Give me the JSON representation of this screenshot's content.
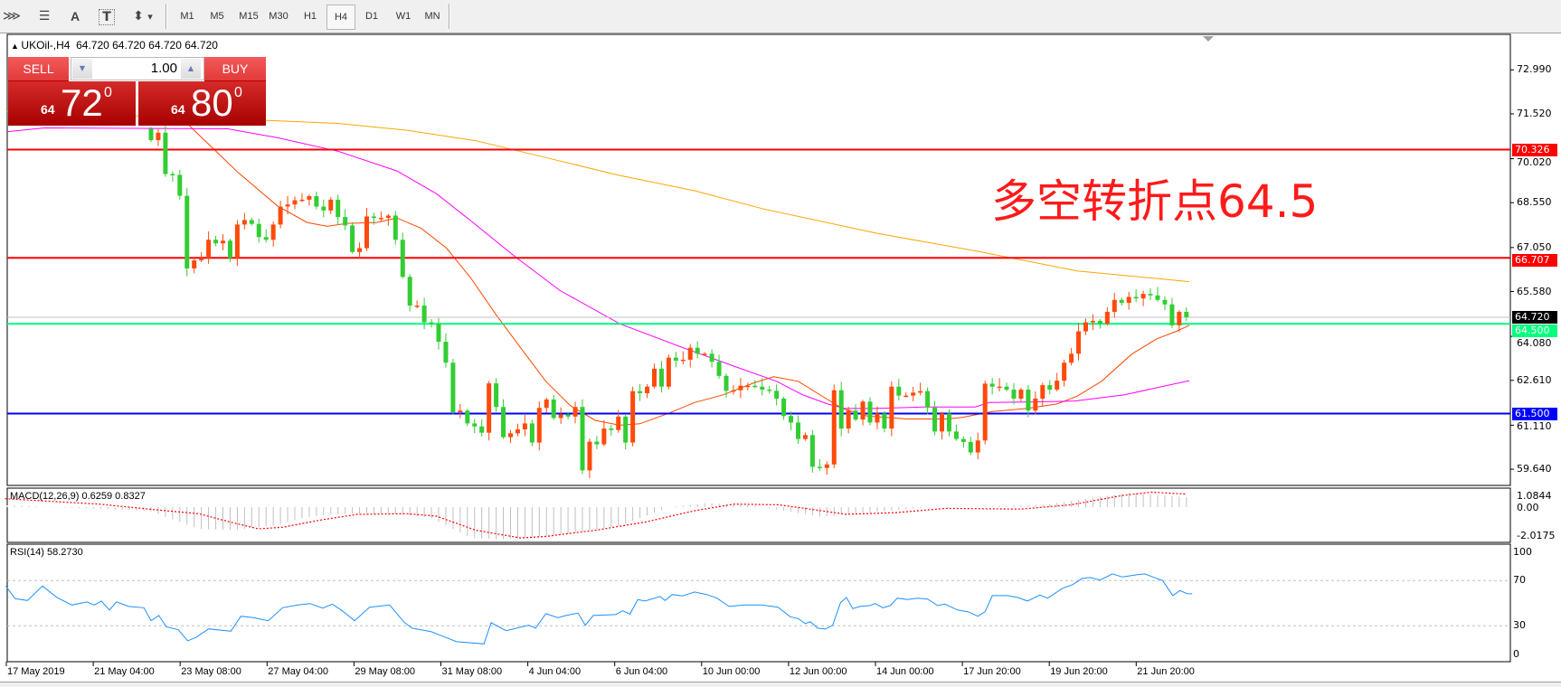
{
  "toolbar": {
    "tools": [
      {
        "icon": "elliott-wave-icon",
        "glyph": "⋙"
      },
      {
        "icon": "fibonacci-icon",
        "glyph": "☰"
      },
      {
        "icon": "text-icon",
        "glyph": "A"
      },
      {
        "icon": "text-label-icon",
        "glyph": "T"
      },
      {
        "icon": "arrows-icon",
        "glyph": "⬍"
      }
    ],
    "dropdown_glyph": "▾",
    "timeframes": [
      "M1",
      "M5",
      "M15",
      "M30",
      "H1",
      "H4",
      "D1",
      "W1",
      "MN"
    ],
    "active_timeframe": "H4"
  },
  "chart": {
    "symbol_line": "UKOil-,H4  64.720 64.720 64.720 64.720",
    "annotation": "多空转折点64.5"
  },
  "trade": {
    "sell_label": "SELL",
    "buy_label": "BUY",
    "lot": "1.00",
    "sell_price": {
      "small": "64",
      "big": "72",
      "sup": "0"
    },
    "buy_price": {
      "small": "64",
      "big": "80",
      "sup": "0"
    }
  },
  "price_axis": {
    "ticks": [
      {
        "value": 72.99,
        "label": "72.990"
      },
      {
        "value": 71.52,
        "label": "71.520"
      },
      {
        "value": 70.02,
        "label": "70.020"
      },
      {
        "value": 68.55,
        "label": "68.550"
      },
      {
        "value": 67.05,
        "label": "67.050"
      },
      {
        "value": 65.58,
        "label": "65.580"
      },
      {
        "value": 64.08,
        "label": "64.080"
      },
      {
        "value": 62.61,
        "label": "62.610"
      },
      {
        "value": 61.11,
        "label": "61.110"
      },
      {
        "value": 59.64,
        "label": "59.640"
      }
    ],
    "levels": [
      {
        "value": 70.326,
        "label": "70.326",
        "color": "#ff0000"
      },
      {
        "value": 66.707,
        "label": "66.707",
        "color": "#ff0000"
      },
      {
        "value": 64.5,
        "label": "64.500",
        "color": "#00ff7f"
      },
      {
        "value": 61.5,
        "label": "61.500",
        "color": "#0000ff"
      }
    ],
    "bid": {
      "value": 64.72,
      "label": "64.720",
      "color": "#000000"
    }
  },
  "macd": {
    "label": "MACD(12,26,9) 0.6259 0.8327",
    "axis": [
      {
        "value": 1.0844,
        "label": "1.0844"
      },
      {
        "value": 0,
        "label": "0.00"
      },
      {
        "value": -2.0175,
        "label": "-2.0175"
      }
    ],
    "histogram": [
      [
        -20.3,
        0.12
      ],
      [
        -0.3,
        -0.23
      ],
      [
        6.6,
        -1.39
      ],
      [
        11.4,
        -1.48
      ],
      [
        16.9,
        -1.19
      ],
      [
        21.8,
        -0.62
      ],
      [
        27.3,
        -0.42
      ],
      [
        34.2,
        -0.42
      ],
      [
        39,
        -0.71
      ],
      [
        44.5,
        -1.97
      ],
      [
        48,
        -2.06
      ],
      [
        52.1,
        -2.0
      ],
      [
        58.3,
        -1.68
      ],
      [
        65.2,
        -1.19
      ],
      [
        72.1,
        0
      ],
      [
        77,
        0.25
      ],
      [
        82.5,
        0.19
      ],
      [
        87.6,
        -0.19
      ],
      [
        93.2,
        -0.62
      ],
      [
        100.2,
        -0.33
      ],
      [
        107.1,
        -0.04
      ],
      [
        117.5,
        0.06
      ],
      [
        124.5,
        0.15
      ],
      [
        131.4,
        0.64
      ],
      [
        136.3,
        0.92
      ],
      [
        144,
        0.63
      ]
    ],
    "signal": [
      [
        -20.3,
        0.54
      ],
      [
        -7.2,
        0.19
      ],
      [
        -0.3,
        -0.13
      ],
      [
        6.6,
        -0.42
      ],
      [
        11.4,
        -1.0
      ],
      [
        14.9,
        -1.39
      ],
      [
        18.3,
        -1.29
      ],
      [
        23.8,
        -0.81
      ],
      [
        28.7,
        -0.46
      ],
      [
        35.6,
        -0.42
      ],
      [
        39.7,
        -0.58
      ],
      [
        45.2,
        -1.48
      ],
      [
        51.4,
        -1.97
      ],
      [
        54.9,
        -1.87
      ],
      [
        61.8,
        -1.48
      ],
      [
        68.7,
        -0.96
      ],
      [
        75.6,
        -0.23
      ],
      [
        81.1,
        0.19
      ],
      [
        87.2,
        0.15
      ],
      [
        89.7,
        0
      ],
      [
        96.7,
        -0.46
      ],
      [
        103.6,
        -0.35
      ],
      [
        110.6,
        -0.08
      ],
      [
        121,
        -0.13
      ],
      [
        128,
        0.15
      ],
      [
        134.9,
        0.73
      ],
      [
        139.1,
        0.96
      ],
      [
        144,
        0.83
      ]
    ],
    "histogram_color": "#c0c0c0",
    "signal_color": "#ff0000"
  },
  "rsi": {
    "label": "RSI(14) 58.2730",
    "axis": [
      {
        "value": 100,
        "label": "100"
      },
      {
        "value": 70,
        "label": "70"
      },
      {
        "value": 30,
        "label": "30"
      },
      {
        "value": 0,
        "label": "0"
      }
    ],
    "levels": [
      70,
      30
    ],
    "color": "#1e90ff",
    "points": [
      [
        -20.2,
        65.2
      ],
      [
        -18.9,
        54
      ],
      [
        -17.2,
        52.4
      ],
      [
        -15.1,
        65.2
      ],
      [
        -13.1,
        55.1
      ],
      [
        -11,
        48.4
      ],
      [
        -8.9,
        51.1
      ],
      [
        -7.9,
        48.4
      ],
      [
        -6.9,
        51.9
      ],
      [
        -5.8,
        43.9
      ],
      [
        -4.8,
        51.1
      ],
      [
        -3.1,
        47.1
      ],
      [
        -1,
        46
      ],
      [
        0,
        34.5
      ],
      [
        1.1,
        39.1
      ],
      [
        2.1,
        29.2
      ],
      [
        3.8,
        26.5
      ],
      [
        5.1,
        16.7
      ],
      [
        6.3,
        19.9
      ],
      [
        8,
        27.3
      ],
      [
        11.1,
        25.2
      ],
      [
        12.5,
        38.5
      ],
      [
        14.2,
        37.2
      ],
      [
        16.3,
        34.5
      ],
      [
        18.3,
        46
      ],
      [
        20.4,
        48.4
      ],
      [
        22.1,
        49.7
      ],
      [
        23.9,
        45.7
      ],
      [
        25.2,
        49.2
      ],
      [
        26.6,
        43.3
      ],
      [
        28.3,
        34.5
      ],
      [
        30.4,
        46.5
      ],
      [
        33.2,
        48.4
      ],
      [
        35.2,
        33.2
      ],
      [
        36.3,
        27.9
      ],
      [
        39,
        24.7
      ],
      [
        40.4,
        21.2
      ],
      [
        42.5,
        15.9
      ],
      [
        46.3,
        14
      ],
      [
        47.3,
        32.7
      ],
      [
        49.4,
        25.7
      ],
      [
        52.5,
        30.5
      ],
      [
        53.5,
        27.9
      ],
      [
        54.9,
        40.7
      ],
      [
        56.6,
        37.2
      ],
      [
        57.7,
        39.1
      ],
      [
        59.4,
        41.2
      ],
      [
        60.4,
        30.5
      ],
      [
        61.5,
        39.1
      ],
      [
        64.6,
        39.9
      ],
      [
        65.6,
        43.3
      ],
      [
        66.6,
        40.4
      ],
      [
        67.7,
        53.2
      ],
      [
        68.7,
        51.9
      ],
      [
        70.8,
        55.9
      ],
      [
        71.5,
        52.4
      ],
      [
        72.5,
        57.7
      ],
      [
        73.9,
        56.4
      ],
      [
        75.6,
        59.9
      ],
      [
        77.3,
        57.7
      ],
      [
        78.7,
        54.5
      ],
      [
        80.4,
        47.1
      ],
      [
        82.5,
        48.4
      ],
      [
        84.9,
        48.4
      ],
      [
        87.2,
        46.5
      ],
      [
        88.9,
        38
      ],
      [
        90,
        36.4
      ],
      [
        91,
        31.9
      ],
      [
        91.7,
        33.7
      ],
      [
        92.7,
        27.9
      ],
      [
        93.8,
        27.1
      ],
      [
        94.8,
        30.5
      ],
      [
        95.9,
        50.5
      ],
      [
        96.7,
        55.1
      ],
      [
        97.6,
        45.2
      ],
      [
        98.6,
        47.1
      ],
      [
        100,
        47.9
      ],
      [
        100.7,
        49.7
      ],
      [
        101.8,
        46
      ],
      [
        102.8,
        47.9
      ],
      [
        103.8,
        54.5
      ],
      [
        105.2,
        53.2
      ],
      [
        106.6,
        54.5
      ],
      [
        108,
        53.7
      ],
      [
        109.4,
        47.9
      ],
      [
        110.4,
        49.2
      ],
      [
        112.2,
        43.9
      ],
      [
        113.6,
        42.5
      ],
      [
        115,
        38.5
      ],
      [
        116,
        42.5
      ],
      [
        117,
        56.7
      ],
      [
        119.1,
        56.7
      ],
      [
        120.5,
        55.1
      ],
      [
        121.9,
        51.9
      ],
      [
        123.6,
        57.2
      ],
      [
        124.7,
        54.5
      ],
      [
        126.8,
        63.3
      ],
      [
        128.2,
        66.5
      ],
      [
        129.5,
        71.9
      ],
      [
        130.6,
        72.7
      ],
      [
        132,
        70.5
      ],
      [
        133.7,
        75.9
      ],
      [
        135.1,
        73.2
      ],
      [
        137.2,
        75.3
      ],
      [
        138.2,
        75.9
      ],
      [
        140.7,
        70
      ],
      [
        142.1,
        56.7
      ],
      [
        143.1,
        61.2
      ],
      [
        144.1,
        58.5
      ],
      [
        144.8,
        58.3
      ]
    ]
  },
  "x_axis": {
    "labels": [
      "17 May 2019",
      "21 May 04:00",
      "23 May 08:00",
      "27 May 04:00",
      "29 May 08:00",
      "31 May 08:00",
      "4 Jun 04:00",
      "6 Jun 04:00",
      "10 Jun 00:00",
      "12 Jun 00:00",
      "14 Jun 00:00",
      "17 Jun 20:00",
      "19 Jun 20:00",
      "21 Jun 20:00"
    ]
  },
  "chart_data": {
    "type": "candlestick",
    "symbol": "UKOil-",
    "timeframe": "H4",
    "first_open": 71.02,
    "closes": [
      70.64,
      70.89,
      69.51,
      69.48,
      68.78,
      66.35,
      66.62,
      66.7,
      67.31,
      67.19,
      67.28,
      66.7,
      67.82,
      67.97,
      67.84,
      67.4,
      67.31,
      67.82,
      68.42,
      68.49,
      68.63,
      68.65,
      68.77,
      68.42,
      68.29,
      68.65,
      68.07,
      67.79,
      66.9,
      67.03,
      68.09,
      68.04,
      68.04,
      68.12,
      67.31,
      66.07,
      65.11,
      65.11,
      64.55,
      64.5,
      63.9,
      63.2,
      61.54,
      61.6,
      61.17,
      61.07,
      60.86,
      62.51,
      61.72,
      60.71,
      60.84,
      60.97,
      61.17,
      60.53,
      61.69,
      61.97,
      61.35,
      61.47,
      61.4,
      61.72,
      59.6,
      60.56,
      60.47,
      61.0,
      60.95,
      61.4,
      60.53,
      62.25,
      62.18,
      62.4,
      63.0,
      62.4,
      63.37,
      63.27,
      63.3,
      63.7,
      63.5,
      63.5,
      63.23,
      62.76,
      62.26,
      62.28,
      62.43,
      62.43,
      62.4,
      62.3,
      62.26,
      62.0,
      61.42,
      61.2,
      60.65,
      60.78,
      59.72,
      59.68,
      59.8,
      62.28,
      61.0,
      61.6,
      61.3,
      61.9,
      61.2,
      61.5,
      61.0,
      62.4,
      62.1,
      62.1,
      62.2,
      62.25,
      61.7,
      60.9,
      61.5,
      60.9,
      60.65,
      60.55,
      60.2,
      60.6,
      62.5,
      62.4,
      62.4,
      62.3,
      62.0,
      62.3,
      61.6,
      62.0,
      62.45,
      62.3,
      62.6,
      63.2,
      63.5,
      64.25,
      64.55,
      64.6,
      64.5,
      64.9,
      65.3,
      65.2,
      65.4,
      65.35,
      65.5,
      65.45,
      65.3,
      65.15,
      64.45,
      64.9,
      64.72
    ],
    "up_color": "#ff4a0a",
    "down_color": "#32cd32",
    "moving_averages": [
      {
        "color": "#ff4500",
        "points": [
          [
            2,
            72.1
          ],
          [
            3.5,
            71.6
          ],
          [
            5.9,
            70.99
          ],
          [
            8.6,
            70.37
          ],
          [
            12.1,
            69.56
          ],
          [
            17.6,
            68.44
          ],
          [
            21.7,
            67.89
          ],
          [
            24.5,
            67.76
          ],
          [
            27.3,
            67.86
          ],
          [
            31.4,
            67.89
          ],
          [
            34.2,
            68.04
          ],
          [
            37.6,
            67.69
          ],
          [
            41.1,
            67.03
          ],
          [
            44.5,
            66.02
          ],
          [
            48,
            64.8
          ],
          [
            51.4,
            63.7
          ],
          [
            54.9,
            62.58
          ],
          [
            58.3,
            61.77
          ],
          [
            61.8,
            61.27
          ],
          [
            65.2,
            61.11
          ],
          [
            68,
            61.16
          ],
          [
            72.1,
            61.52
          ],
          [
            75.6,
            61.87
          ],
          [
            79.6,
            62.13
          ],
          [
            83.9,
            62.53
          ],
          [
            86.6,
            62.73
          ],
          [
            90,
            62.58
          ],
          [
            94.1,
            61.97
          ],
          [
            96.2,
            61.67
          ],
          [
            99.6,
            61.42
          ],
          [
            105.2,
            61.32
          ],
          [
            110.7,
            61.32
          ],
          [
            112.8,
            61.37
          ],
          [
            117,
            61.57
          ],
          [
            121.8,
            61.67
          ],
          [
            126,
            61.82
          ],
          [
            128.8,
            62.08
          ],
          [
            132.2,
            62.58
          ],
          [
            136.4,
            63.49
          ],
          [
            139.9,
            64.0
          ],
          [
            142.6,
            64.25
          ],
          [
            144.4,
            64.45
          ]
        ]
      },
      {
        "color": "#ff00ff",
        "points": [
          [
            -20,
            70.92
          ],
          [
            -14.8,
            71.05
          ],
          [
            10.7,
            71.02
          ],
          [
            17.6,
            70.72
          ],
          [
            26,
            70.27
          ],
          [
            34.2,
            69.61
          ],
          [
            39.7,
            68.85
          ],
          [
            44.5,
            67.94
          ],
          [
            50.7,
            66.73
          ],
          [
            56.9,
            65.61
          ],
          [
            65.2,
            64.5
          ],
          [
            74.1,
            63.69
          ],
          [
            81,
            63.09
          ],
          [
            87,
            62.58
          ],
          [
            90.6,
            62.13
          ],
          [
            94.1,
            61.82
          ],
          [
            96.5,
            61.67
          ],
          [
            100.7,
            61.67
          ],
          [
            107.6,
            61.72
          ],
          [
            114.6,
            61.72
          ],
          [
            116.6,
            61.87
          ],
          [
            122.9,
            61.89
          ],
          [
            128.5,
            61.92
          ],
          [
            135.4,
            62.13
          ],
          [
            144.4,
            62.6
          ]
        ]
      },
      {
        "color": "#ffa500",
        "points": [
          [
            -20,
            71.6
          ],
          [
            16.3,
            71.3
          ],
          [
            26,
            71.2
          ],
          [
            35.6,
            70.97
          ],
          [
            45.2,
            70.62
          ],
          [
            54.9,
            70.06
          ],
          [
            65.2,
            69.46
          ],
          [
            75.6,
            68.95
          ],
          [
            85.2,
            68.34
          ],
          [
            100.9,
            67.53
          ],
          [
            114.8,
            66.93
          ],
          [
            128.8,
            66.27
          ],
          [
            144.4,
            65.91
          ]
        ]
      }
    ]
  }
}
